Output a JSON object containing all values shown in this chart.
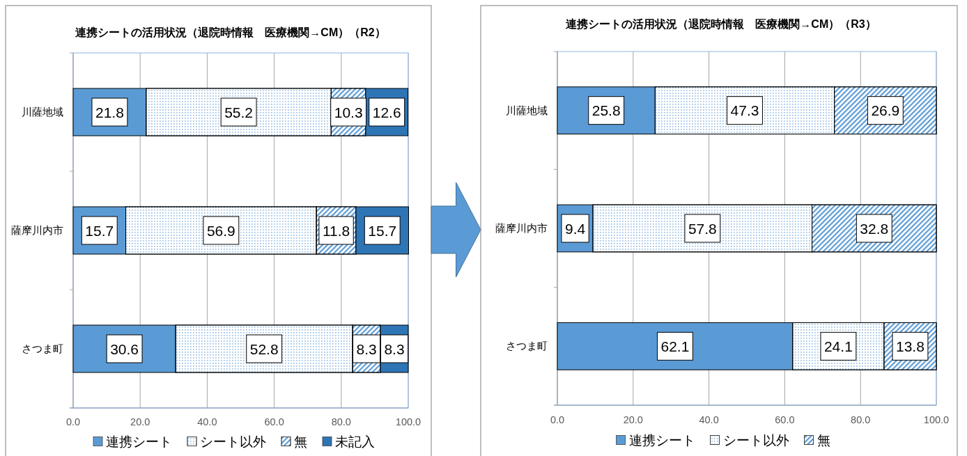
{
  "chart_data": [
    {
      "type": "bar",
      "orientation": "horizontal",
      "stacked": true,
      "title": "連携シートの活用状況（退院時情報　医療機関→CM）（R2）",
      "categories": [
        "川薩地域",
        "薩摩川内市",
        "さつま町"
      ],
      "series": [
        {
          "name": "連携シート",
          "color": "#5b9bd5",
          "values": [
            21.8,
            15.7,
            30.6
          ]
        },
        {
          "name": "シート以外",
          "color": "#9dc3e6",
          "values": [
            55.2,
            56.9,
            52.8
          ]
        },
        {
          "name": "無",
          "color": "#5b9bd5",
          "values": [
            10.3,
            11.8,
            8.3
          ]
        },
        {
          "name": "未記入",
          "color": "#2e75b6",
          "values": [
            12.6,
            15.7,
            8.3
          ]
        }
      ],
      "xlim": [
        0,
        100
      ],
      "xticks": [
        {
          "value": 0,
          "label": "0.0"
        },
        {
          "value": 20,
          "label": "20.0"
        },
        {
          "value": 40,
          "label": "40.0"
        },
        {
          "value": 60,
          "label": "60.0"
        },
        {
          "value": 80,
          "label": "80.0"
        },
        {
          "value": 100,
          "label": "100.0"
        }
      ],
      "grid": "x",
      "legend": "bottom",
      "data_labels": true
    },
    {
      "type": "bar",
      "orientation": "horizontal",
      "stacked": true,
      "title": "連携シートの活用状況（退院時情報　医療機関→CM）（R3）",
      "categories": [
        "川薩地域",
        "薩摩川内市",
        "さつま町"
      ],
      "series": [
        {
          "name": "連携シート",
          "color": "#5b9bd5",
          "values": [
            25.8,
            9.4,
            62.1
          ]
        },
        {
          "name": "シート以外",
          "color": "#9dc3e6",
          "values": [
            47.3,
            57.8,
            24.1
          ]
        },
        {
          "name": "無",
          "color": "#5b9bd5",
          "values": [
            26.9,
            32.8,
            13.8
          ]
        }
      ],
      "xlim": [
        0,
        100
      ],
      "xticks": [
        {
          "value": 0,
          "label": "0.0"
        },
        {
          "value": 20,
          "label": "20.0"
        },
        {
          "value": 40,
          "label": "40.0"
        },
        {
          "value": 60,
          "label": "60.0"
        },
        {
          "value": 80,
          "label": "80.0"
        },
        {
          "value": 100,
          "label": "100.0"
        }
      ],
      "grid": "x",
      "legend": "bottom",
      "data_labels": true
    }
  ]
}
